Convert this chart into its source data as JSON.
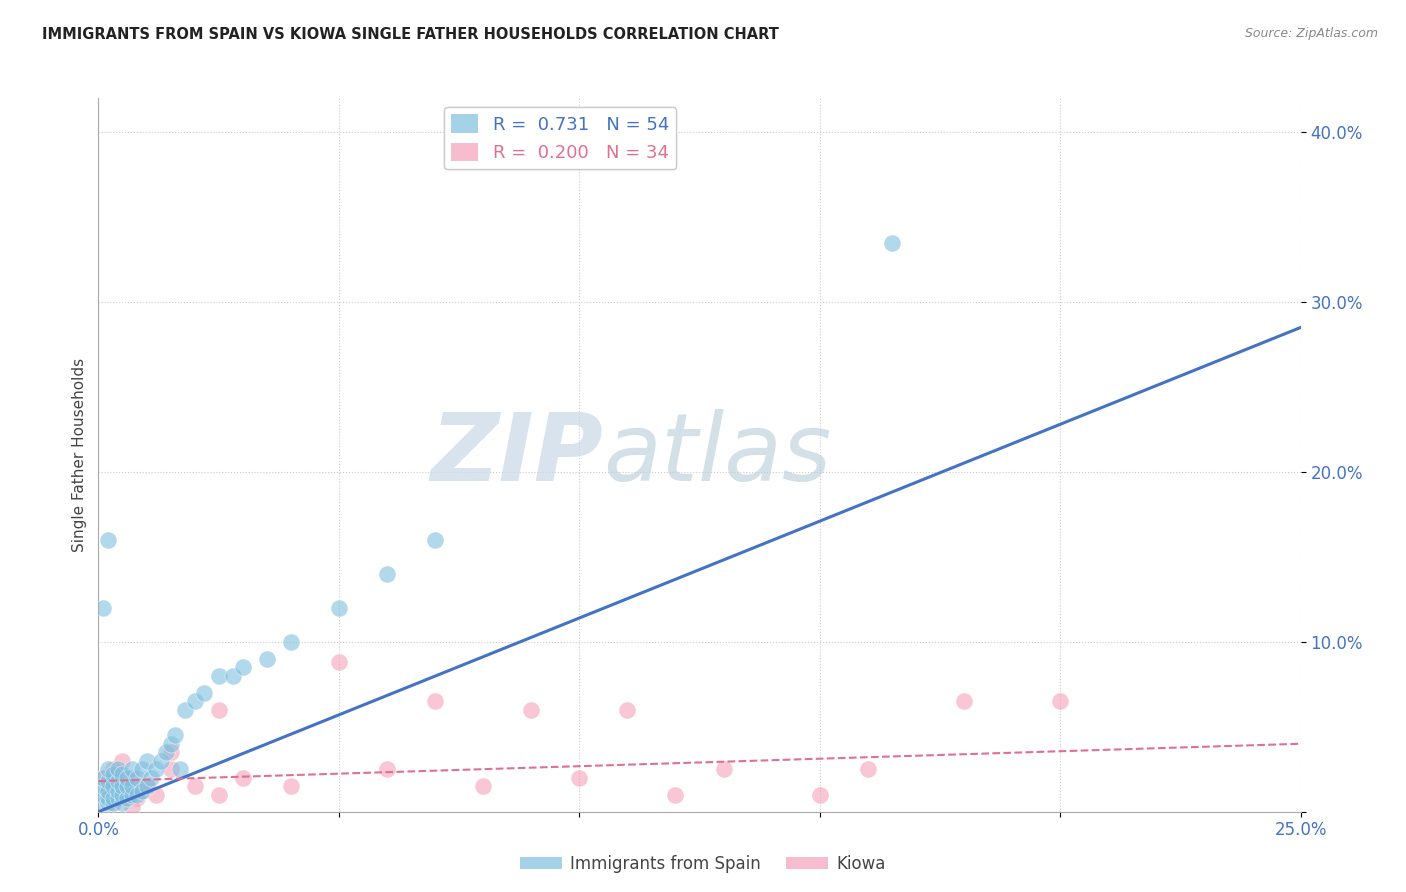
{
  "title": "IMMIGRANTS FROM SPAIN VS KIOWA SINGLE FATHER HOUSEHOLDS CORRELATION CHART",
  "source": "Source: ZipAtlas.com",
  "ylabel": "Single Father Households",
  "xlim": [
    0.0,
    0.25
  ],
  "ylim": [
    0.0,
    0.42
  ],
  "x_ticks": [
    0.0,
    0.05,
    0.1,
    0.15,
    0.2,
    0.25
  ],
  "x_tick_labels": [
    "0.0%",
    "",
    "",
    "",
    "",
    "25.0%"
  ],
  "y_ticks": [
    0.0,
    0.1,
    0.2,
    0.3,
    0.4
  ],
  "y_tick_labels": [
    "",
    "10.0%",
    "20.0%",
    "30.0%",
    "40.0%"
  ],
  "grid_color": "#cccccc",
  "background_color": "#ffffff",
  "blue_color": "#7fbfdf",
  "pink_color": "#f4a0b8",
  "blue_line_color": "#4472c4",
  "pink_line_color": "#e07090",
  "legend_R1": "0.731",
  "legend_N1": "54",
  "legend_R2": "0.200",
  "legend_N2": "34",
  "legend_label1": "Immigrants from Spain",
  "legend_label2": "Kiowa",
  "watermark_zip": "ZIP",
  "watermark_atlas": "atlas",
  "blue_scatter_x": [
    0.001,
    0.001,
    0.001,
    0.001,
    0.002,
    0.002,
    0.002,
    0.002,
    0.002,
    0.003,
    0.003,
    0.003,
    0.003,
    0.004,
    0.004,
    0.004,
    0.004,
    0.005,
    0.005,
    0.005,
    0.005,
    0.006,
    0.006,
    0.006,
    0.007,
    0.007,
    0.007,
    0.008,
    0.008,
    0.009,
    0.009,
    0.01,
    0.01,
    0.011,
    0.012,
    0.013,
    0.014,
    0.015,
    0.016,
    0.017,
    0.018,
    0.02,
    0.022,
    0.025,
    0.028,
    0.03,
    0.035,
    0.04,
    0.05,
    0.06,
    0.07,
    0.001,
    0.002,
    0.165
  ],
  "blue_scatter_y": [
    0.005,
    0.01,
    0.015,
    0.02,
    0.005,
    0.008,
    0.012,
    0.018,
    0.025,
    0.005,
    0.008,
    0.015,
    0.022,
    0.008,
    0.012,
    0.018,
    0.025,
    0.005,
    0.01,
    0.015,
    0.022,
    0.008,
    0.015,
    0.02,
    0.01,
    0.015,
    0.025,
    0.01,
    0.02,
    0.012,
    0.025,
    0.015,
    0.03,
    0.02,
    0.025,
    0.03,
    0.035,
    0.04,
    0.045,
    0.025,
    0.06,
    0.065,
    0.07,
    0.08,
    0.08,
    0.085,
    0.09,
    0.1,
    0.12,
    0.14,
    0.16,
    0.12,
    0.16,
    0.335
  ],
  "pink_scatter_x": [
    0.001,
    0.002,
    0.003,
    0.004,
    0.005,
    0.006,
    0.007,
    0.008,
    0.01,
    0.012,
    0.015,
    0.02,
    0.025,
    0.03,
    0.04,
    0.05,
    0.06,
    0.07,
    0.08,
    0.09,
    0.1,
    0.11,
    0.12,
    0.13,
    0.15,
    0.16,
    0.18,
    0.2,
    0.003,
    0.005,
    0.007,
    0.009,
    0.015,
    0.025
  ],
  "pink_scatter_y": [
    0.02,
    0.015,
    0.025,
    0.018,
    0.03,
    0.01,
    0.02,
    0.008,
    0.015,
    0.01,
    0.025,
    0.015,
    0.01,
    0.02,
    0.015,
    0.088,
    0.025,
    0.065,
    0.015,
    0.06,
    0.02,
    0.06,
    0.01,
    0.025,
    0.01,
    0.025,
    0.065,
    0.065,
    0.005,
    0.008,
    0.003,
    0.012,
    0.035,
    0.06
  ],
  "blue_line_x": [
    0.0,
    0.25
  ],
  "blue_line_y": [
    0.0,
    0.285
  ],
  "pink_line_x": [
    0.0,
    0.25
  ],
  "pink_line_y": [
    0.018,
    0.04
  ]
}
